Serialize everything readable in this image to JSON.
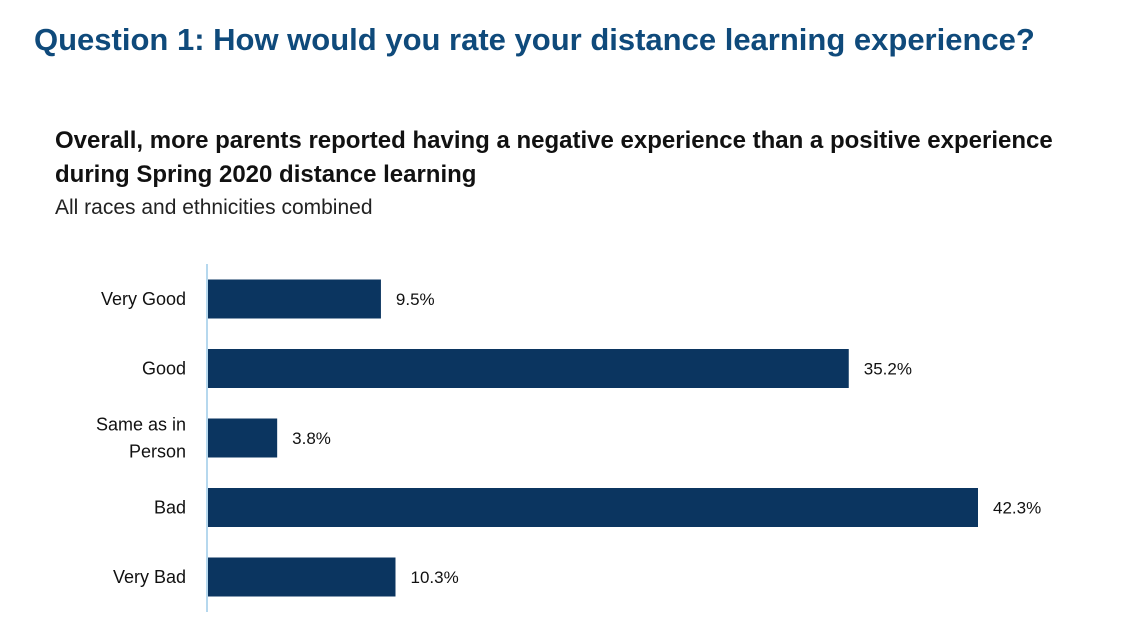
{
  "page": {
    "title": "Question 1: How would you rate your distance learning experience?",
    "headline": "Overall, more parents reported having a negative experience than a positive experience during Spring 2020 distance learning",
    "subtitle": "All races and ethnicities combined"
  },
  "colors": {
    "title": "#0f4a7b",
    "bar": "#0b3560",
    "axis": "#9ecbe8"
  },
  "chart_data": {
    "type": "bar",
    "orientation": "horizontal",
    "categories": [
      "Very Good",
      "Good",
      "Same as in Person",
      "Bad",
      "Very Bad"
    ],
    "category_lines": [
      [
        "Very Good"
      ],
      [
        "Good"
      ],
      [
        "Same as in",
        "Person"
      ],
      [
        "Bad"
      ],
      [
        "Very Bad"
      ]
    ],
    "values": [
      9.5,
      35.2,
      3.8,
      42.3,
      10.3
    ],
    "value_labels": [
      "9.5%",
      "35.2%",
      "3.8%",
      "42.3%",
      "10.3%"
    ],
    "unit": "%",
    "xlim": [
      0,
      42.3
    ],
    "grid": false,
    "legend": "none"
  }
}
